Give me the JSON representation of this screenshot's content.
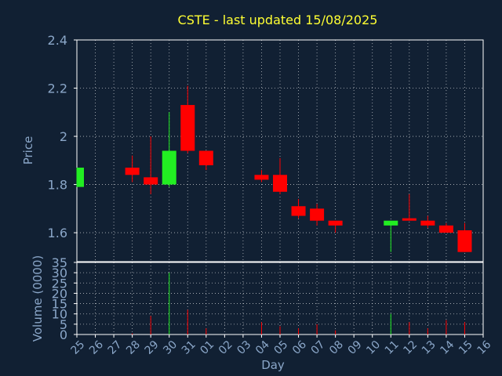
{
  "chart_data": {
    "type": "candlestick",
    "title": "CSTE - last updated 15/08/2025",
    "colors": {
      "background": "#112033",
      "plot_border": "#ffffff",
      "grid": "#ffffff",
      "up": "#22ee22",
      "down": "#ff0000",
      "text": "#8aa6c8",
      "title": "#ffff33"
    },
    "x_axis": {
      "label": "Day",
      "ticks": [
        "25",
        "26",
        "27",
        "28",
        "29",
        "30",
        "31",
        "01",
        "02",
        "03",
        "04",
        "05",
        "06",
        "07",
        "08",
        "09",
        "10",
        "11",
        "12",
        "13",
        "14",
        "15",
        "16"
      ]
    },
    "price_axis": {
      "label": "Price",
      "ylim": [
        1.48,
        2.4
      ],
      "ticks": [
        "1.6",
        "1.8",
        "2",
        "2.2",
        "2.4"
      ]
    },
    "volume_axis": {
      "label": "Volume (0000)",
      "ylim": [
        0,
        35
      ],
      "ticks": [
        "0",
        "5",
        "10",
        "15",
        "20",
        "25",
        "30",
        "35"
      ]
    },
    "grid": true,
    "candles": [
      {
        "day": "25",
        "open": 1.79,
        "high": 1.87,
        "low": 1.79,
        "close": 1.87,
        "volume": 0
      },
      {
        "day": "28",
        "open": 1.87,
        "high": 1.92,
        "low": 1.81,
        "close": 1.84,
        "volume": 0.5
      },
      {
        "day": "29",
        "open": 1.83,
        "high": 2.0,
        "low": 1.76,
        "close": 1.8,
        "volume": 9
      },
      {
        "day": "30",
        "open": 1.8,
        "high": 2.1,
        "low": 1.79,
        "close": 1.94,
        "volume": 30
      },
      {
        "day": "31",
        "open": 2.13,
        "high": 2.21,
        "low": 1.93,
        "close": 1.94,
        "volume": 12
      },
      {
        "day": "01",
        "open": 1.94,
        "high": 1.94,
        "low": 1.86,
        "close": 1.88,
        "volume": 3
      },
      {
        "day": "04",
        "open": 1.84,
        "high": 1.86,
        "low": 1.81,
        "close": 1.82,
        "volume": 6
      },
      {
        "day": "05",
        "open": 1.84,
        "high": 1.91,
        "low": 1.76,
        "close": 1.77,
        "volume": 4
      },
      {
        "day": "06",
        "open": 1.71,
        "high": 1.74,
        "low": 1.66,
        "close": 1.67,
        "volume": 3
      },
      {
        "day": "07",
        "open": 1.7,
        "high": 1.72,
        "low": 1.63,
        "close": 1.65,
        "volume": 5
      },
      {
        "day": "08",
        "open": 1.65,
        "high": 1.65,
        "low": 1.6,
        "close": 1.63,
        "volume": 2
      },
      {
        "day": "11",
        "open": 1.63,
        "high": 1.65,
        "low": 1.52,
        "close": 1.65,
        "volume": 10
      },
      {
        "day": "12",
        "open": 1.66,
        "high": 1.76,
        "low": 1.65,
        "close": 1.65,
        "volume": 6
      },
      {
        "day": "13",
        "open": 1.65,
        "high": 1.67,
        "low": 1.62,
        "close": 1.63,
        "volume": 3
      },
      {
        "day": "14",
        "open": 1.63,
        "high": 1.64,
        "low": 1.6,
        "close": 1.6,
        "volume": 7
      },
      {
        "day": "15",
        "open": 1.61,
        "high": 1.64,
        "low": 1.52,
        "close": 1.52,
        "volume": 6
      }
    ]
  }
}
